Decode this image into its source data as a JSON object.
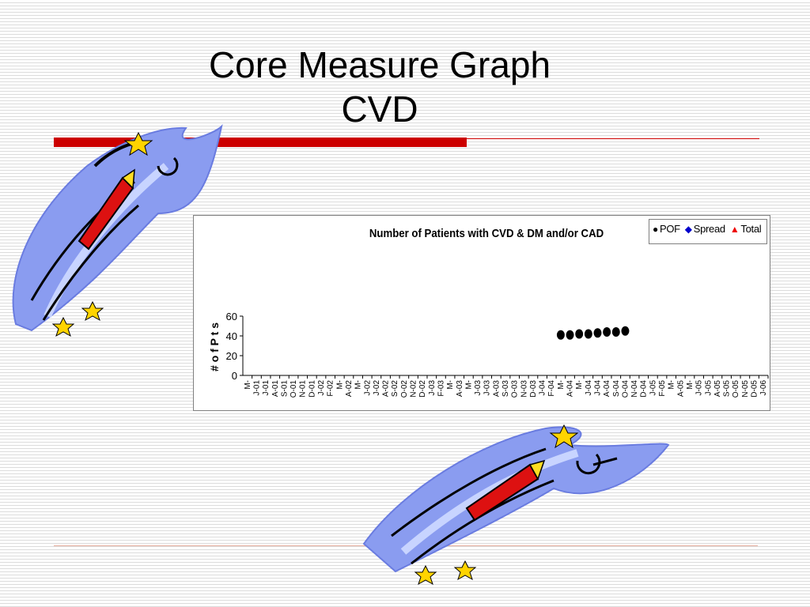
{
  "slide": {
    "title_line1": "Core Measure Graph",
    "title_line2": "CVD"
  },
  "decor": {
    "rocket_icon": "firework-rocket-icon",
    "accent_color": "#cc0000"
  },
  "chart_data": {
    "type": "scatter",
    "title": "Number of Patients with CVD & DM and/or CAD",
    "ylabel": "# o f P t s",
    "xlabel": "",
    "ylim": [
      0,
      60
    ],
    "yticks": [
      0,
      20,
      40,
      60
    ],
    "legend_position": "top-right",
    "categories": [
      "M-",
      "J-01",
      "J-01",
      "A-01",
      "S-01",
      "O-01",
      "N-01",
      "D-01",
      "J-02",
      "F-02",
      "M-",
      "A-02",
      "M-",
      "J-02",
      "J-02",
      "A-02",
      "S-02",
      "O-02",
      "N-02",
      "D-02",
      "J-03",
      "F-03",
      "M-",
      "A-03",
      "M-",
      "J-03",
      "J-03",
      "A-03",
      "S-03",
      "O-03",
      "N-03",
      "D-03",
      "J-04",
      "F-04",
      "M-",
      "A-04",
      "M-",
      "J-04",
      "J-04",
      "A-04",
      "S-04",
      "O-04",
      "N-04",
      "D-04",
      "J-05",
      "F-05",
      "M-",
      "A-05",
      "M-",
      "J-05",
      "J-05",
      "A-05",
      "S-05",
      "O-05",
      "N-05",
      "D-05",
      "J-06"
    ],
    "series": [
      {
        "name": "POF",
        "color": "#000000",
        "marker": "circle",
        "values": [
          null,
          null,
          null,
          null,
          null,
          null,
          null,
          null,
          null,
          null,
          null,
          null,
          null,
          null,
          null,
          null,
          null,
          null,
          null,
          null,
          null,
          null,
          null,
          null,
          null,
          null,
          null,
          null,
          null,
          null,
          null,
          null,
          null,
          null,
          41,
          41,
          42,
          42,
          43,
          44,
          44,
          45,
          null,
          null,
          null,
          null,
          null,
          null,
          null,
          null,
          null,
          null,
          null,
          null,
          null,
          null,
          null
        ]
      },
      {
        "name": "Spread",
        "color": "#0000cc",
        "marker": "diamond",
        "values": []
      },
      {
        "name": "Total",
        "color": "#ee0000",
        "marker": "triangle",
        "values": []
      }
    ]
  }
}
